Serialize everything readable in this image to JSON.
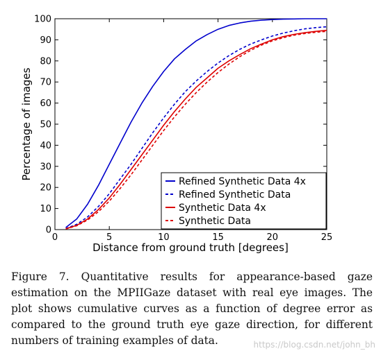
{
  "chart_data": {
    "type": "line",
    "xlabel": "Distance from ground truth [degrees]",
    "ylabel": "Percentage of images",
    "xlim": [
      0,
      25
    ],
    "ylim": [
      0,
      100
    ],
    "xticks": [
      0,
      5,
      10,
      15,
      20,
      25
    ],
    "yticks": [
      0,
      10,
      20,
      30,
      40,
      50,
      60,
      70,
      80,
      90,
      100
    ],
    "grid": false,
    "legend_position": "bottom-right",
    "series": [
      {
        "name": "Refined Synthetic Data 4x",
        "color": "#0000cc",
        "style": "solid",
        "x": [
          1,
          2,
          3,
          4,
          5,
          6,
          7,
          8,
          9,
          10,
          11,
          12,
          13,
          14,
          15,
          16,
          17,
          18,
          19,
          20,
          21,
          22,
          23,
          24,
          25
        ],
        "y": [
          1,
          5,
          12,
          21,
          31,
          41,
          51,
          60,
          68,
          75,
          81,
          85.5,
          89.5,
          92.5,
          95,
          96.8,
          98,
          98.8,
          99.3,
          99.6,
          99.8,
          99.9,
          100,
          100,
          100
        ]
      },
      {
        "name": "Refined Synthetic Data",
        "color": "#0000cc",
        "style": "dashed",
        "x": [
          1,
          2,
          3,
          4,
          5,
          6,
          7,
          8,
          9,
          10,
          11,
          12,
          13,
          14,
          15,
          16,
          17,
          18,
          19,
          20,
          21,
          22,
          23,
          24,
          25
        ],
        "y": [
          0.5,
          2.5,
          6,
          11,
          17,
          24,
          31,
          38.5,
          46,
          53,
          59.5,
          65.5,
          70.5,
          75,
          79,
          82.5,
          85.5,
          88,
          90,
          91.8,
          93.2,
          94.3,
          95.2,
          95.8,
          96.2
        ]
      },
      {
        "name": "Synthetic Data 4x",
        "color": "#dd0000",
        "style": "solid",
        "x": [
          1,
          2,
          3,
          4,
          5,
          6,
          7,
          8,
          9,
          10,
          11,
          12,
          13,
          14,
          15,
          16,
          17,
          18,
          19,
          20,
          21,
          22,
          23,
          24,
          25
        ],
        "y": [
          0.4,
          2,
          5,
          9.5,
          15,
          21.5,
          28.5,
          35.5,
          42.5,
          49.5,
          56,
          62,
          67.5,
          72,
          76.5,
          80,
          83,
          85.8,
          88,
          90,
          91.5,
          92.6,
          93.4,
          94,
          94.5
        ]
      },
      {
        "name": "Synthetic Data",
        "color": "#dd0000",
        "style": "dashed",
        "x": [
          1,
          2,
          3,
          4,
          5,
          6,
          7,
          8,
          9,
          10,
          11,
          12,
          13,
          14,
          15,
          16,
          17,
          18,
          19,
          20,
          21,
          22,
          23,
          24,
          25
        ],
        "y": [
          0.3,
          1.8,
          4.5,
          8.5,
          13.5,
          19.5,
          26,
          33,
          40,
          47,
          53.5,
          59.5,
          65,
          70,
          74.5,
          78.5,
          82,
          85,
          87.5,
          89.5,
          91,
          92.2,
          93,
          93.6,
          94
        ]
      }
    ]
  },
  "caption": "Figure 7. Quantitative results for appearance-based gaze estimation on the MPIIGaze dataset with real eye images. The plot shows cumulative curves as a function of degree error as compared to the ground truth eye gaze direction, for different numbers of training examples of data.",
  "watermark": "https://blog.csdn.net/john_bh"
}
